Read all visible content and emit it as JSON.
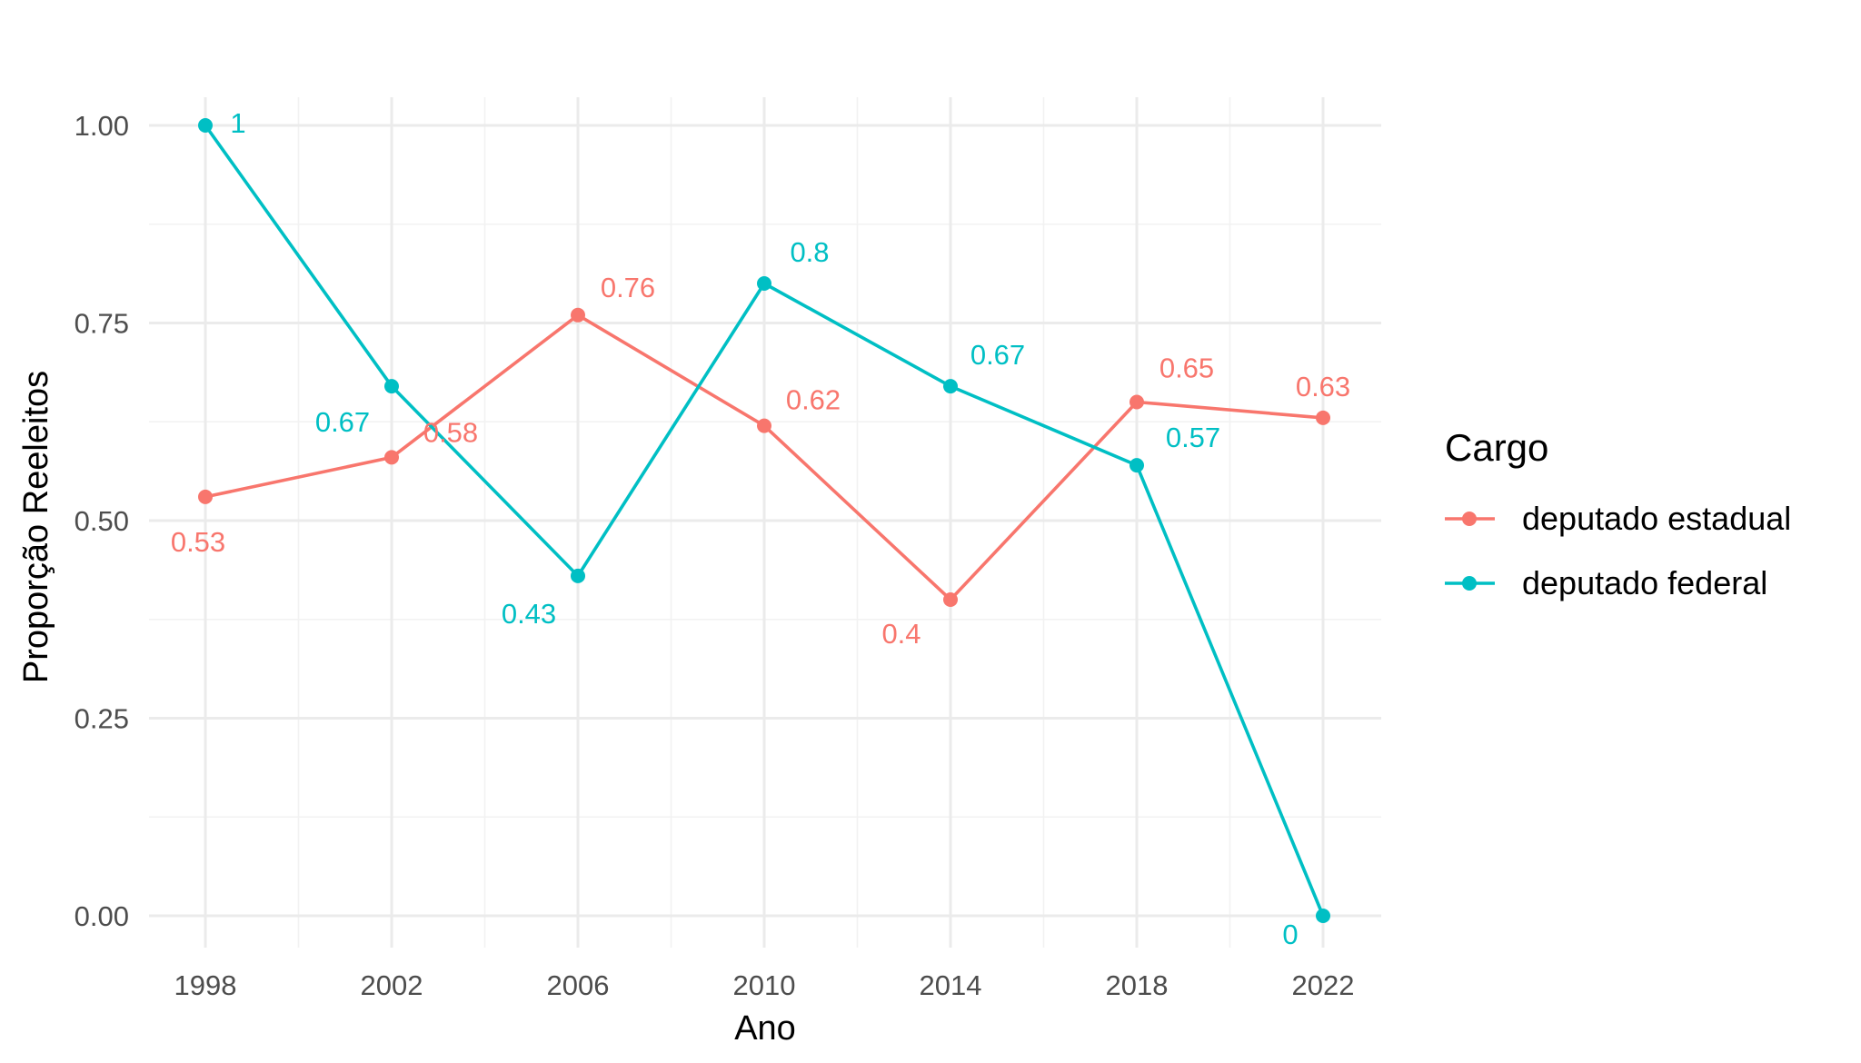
{
  "chart_data": {
    "type": "line",
    "x": [
      1998,
      2002,
      2006,
      2010,
      2014,
      2018,
      2022
    ],
    "xlabel": "Ano",
    "ylabel": "Proporção Reeleitos",
    "xlim": [
      1998,
      2022
    ],
    "ylim": [
      0,
      1
    ],
    "x_ticks": [
      "1998",
      "2002",
      "2006",
      "2010",
      "2014",
      "2018",
      "2022"
    ],
    "y_ticks": [
      0,
      0.25,
      0.5,
      0.75,
      1
    ],
    "y_tick_labels": [
      "0.00",
      "0.25",
      "0.50",
      "0.75",
      "1.00"
    ],
    "grid": true,
    "legend_title": "Cargo",
    "legend_position": "right",
    "series": [
      {
        "name": "deputado estadual",
        "color": "#F8766D",
        "values": [
          0.53,
          0.58,
          0.76,
          0.62,
          0.4,
          0.65,
          0.63
        ],
        "labels": [
          "0.53",
          "0.58",
          "0.76",
          "0.62",
          "0.4",
          "0.65",
          "0.63"
        ]
      },
      {
        "name": "deputado federal",
        "color": "#00BFC4",
        "values": [
          1,
          0.67,
          0.43,
          0.8,
          0.67,
          0.57,
          0
        ],
        "labels": [
          "1",
          "0.67",
          "0.43",
          "0.8",
          "0.67",
          "0.57",
          "0"
        ]
      }
    ]
  }
}
